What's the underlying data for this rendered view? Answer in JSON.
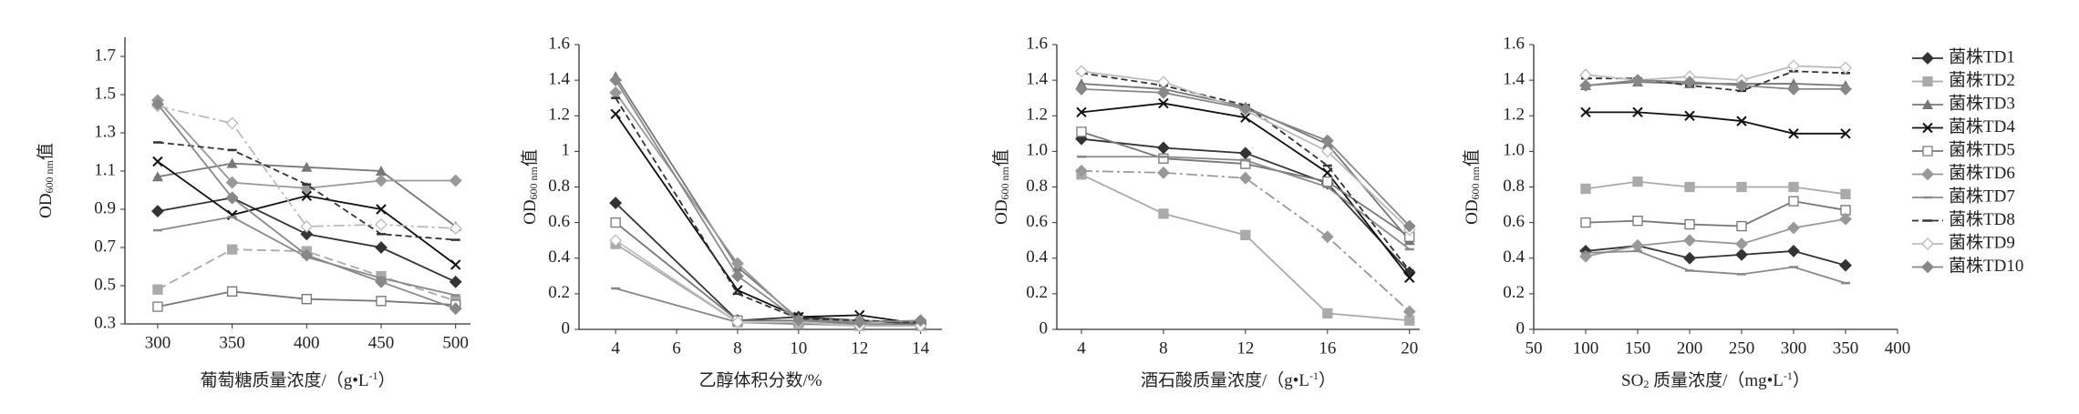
{
  "chart_data": [
    {
      "type": "line",
      "x": [
        300,
        350,
        400,
        450,
        500
      ],
      "xlim": [
        278,
        510
      ],
      "xticks": [
        300,
        350,
        400,
        450,
        500
      ],
      "ylim": [
        0.3,
        1.8
      ],
      "yticks": [
        0.3,
        0.5,
        0.7,
        0.9,
        1.1,
        1.3,
        1.5,
        1.7
      ],
      "ylabel": [
        {
          "text": "OD"
        },
        {
          "text": "600 nm",
          "shift": "sub"
        },
        {
          "text": "值"
        }
      ],
      "xlabel": [
        {
          "text": "葡萄糖质量浓度/（g•L"
        },
        {
          "text": "-1",
          "shift": "sup"
        },
        {
          "text": "）"
        }
      ],
      "series": [
        {
          "color": "#333",
          "marker": "diamond",
          "values": [
            0.89,
            0.96,
            0.77,
            0.7,
            0.52
          ]
        },
        {
          "color": "#aaa",
          "marker": "square",
          "dash": "10,5",
          "values": [
            0.48,
            0.69,
            0.68,
            0.55,
            0.42
          ]
        },
        {
          "color": "#777",
          "marker": "triangle",
          "values": [
            1.07,
            1.14,
            1.12,
            1.1,
            0.81
          ]
        },
        {
          "color": "#111",
          "marker": "cross",
          "values": [
            1.15,
            0.87,
            0.97,
            0.9,
            0.61
          ]
        },
        {
          "color": "#777",
          "marker": "open-square",
          "values": [
            0.39,
            0.47,
            0.43,
            0.42,
            0.4
          ]
        },
        {
          "color": "#999",
          "marker": "diamond",
          "values": [
            1.47,
            1.04,
            1.01,
            1.05,
            1.05
          ]
        },
        {
          "color": "#888",
          "marker": "dash",
          "values": [
            0.79,
            0.86,
            0.65,
            0.54,
            0.45
          ]
        },
        {
          "color": "#333",
          "marker": "dash",
          "dash": "7,4",
          "values": [
            1.25,
            1.21,
            1.03,
            0.77,
            0.74
          ]
        },
        {
          "color": "#bbb",
          "marker": "open-diamond",
          "dash": "12,4,3,4",
          "values": [
            1.44,
            1.35,
            0.81,
            0.82,
            0.8
          ]
        },
        {
          "color": "#888",
          "marker": "diamond",
          "values": [
            1.45,
            0.96,
            0.66,
            0.52,
            0.38
          ]
        }
      ]
    },
    {
      "type": "line",
      "x": [
        4,
        8,
        10,
        12,
        14
      ],
      "xlim": [
        2.8,
        14.7
      ],
      "xticks": [
        4,
        6,
        8,
        10,
        12,
        14
      ],
      "ylim": [
        0,
        1.6
      ],
      "yticks": [
        0,
        0.2,
        0.4,
        0.6,
        0.8,
        1,
        1.2,
        1.4,
        1.6
      ],
      "ylabel": [
        {
          "text": "OD"
        },
        {
          "text": "600 nm",
          "shift": "sub"
        },
        {
          "text": "值"
        }
      ],
      "xlabel": [
        {
          "text": "乙醇体积分数/%"
        }
      ],
      "series": [
        {
          "color": "#333",
          "marker": "diamond",
          "values": [
            0.71,
            0.05,
            0.07,
            0.05,
            0.03
          ]
        },
        {
          "color": "#aaa",
          "marker": "square",
          "values": [
            0.48,
            0.04,
            0.03,
            0.02,
            0.02
          ]
        },
        {
          "color": "#777",
          "marker": "triangle",
          "values": [
            1.42,
            0.35,
            0.06,
            0.05,
            0.04
          ]
        },
        {
          "color": "#111",
          "marker": "cross",
          "values": [
            1.21,
            0.22,
            0.07,
            0.08,
            0.03
          ]
        },
        {
          "color": "#777",
          "marker": "open-square",
          "values": [
            0.6,
            0.05,
            0.05,
            0.03,
            0.03
          ]
        },
        {
          "color": "#999",
          "marker": "diamond",
          "values": [
            1.33,
            0.37,
            0.05,
            0.05,
            0.04
          ]
        },
        {
          "color": "#888",
          "marker": "dash",
          "values": [
            0.23,
            0.04,
            0.03,
            0.03,
            0.02
          ]
        },
        {
          "color": "#333",
          "marker": "dash",
          "dash": "7,4",
          "values": [
            1.3,
            0.2,
            0.06,
            0.05,
            0.04
          ]
        },
        {
          "color": "#bbb",
          "marker": "open-diamond",
          "values": [
            0.5,
            0.04,
            0.04,
            0.02,
            0.02
          ]
        },
        {
          "color": "#888",
          "marker": "diamond",
          "values": [
            1.4,
            0.3,
            0.05,
            0.04,
            0.05
          ]
        }
      ]
    },
    {
      "type": "line",
      "x": [
        4,
        8,
        12,
        16,
        20
      ],
      "xlim": [
        2.8,
        20.5
      ],
      "xticks": [
        4,
        8,
        12,
        16,
        20
      ],
      "ylim": [
        0,
        1.6
      ],
      "yticks": [
        0,
        0.2,
        0.4,
        0.6,
        0.8,
        {
          "value": 1,
          "label": "1.0"
        },
        1.2,
        1.4,
        1.6
      ],
      "ylabel": [
        {
          "text": "OD"
        },
        {
          "text": "600 nm",
          "shift": "sub"
        },
        {
          "text": "值"
        }
      ],
      "xlabel": [
        {
          "text": "酒石酸质量浓度/（g•L"
        },
        {
          "text": "-1",
          "shift": "sup"
        },
        {
          "text": "）"
        }
      ],
      "series": [
        {
          "color": "#333",
          "marker": "diamond",
          "values": [
            1.07,
            1.02,
            0.99,
            0.82,
            0.32
          ]
        },
        {
          "color": "#aaa",
          "marker": "square",
          "values": [
            0.87,
            0.65,
            0.53,
            0.09,
            0.05
          ]
        },
        {
          "color": "#777",
          "marker": "triangle",
          "values": [
            1.38,
            1.35,
            1.25,
            1.04,
            0.5
          ]
        },
        {
          "color": "#111",
          "marker": "cross",
          "values": [
            1.22,
            1.27,
            1.19,
            0.88,
            0.29
          ]
        },
        {
          "color": "#777",
          "marker": "open-square",
          "values": [
            1.11,
            0.96,
            0.93,
            0.83,
            0.52
          ]
        },
        {
          "color": "#999",
          "marker": "diamond",
          "dash": "12,4,3,4",
          "values": [
            0.89,
            0.88,
            0.85,
            0.52,
            0.1
          ]
        },
        {
          "color": "#888",
          "marker": "dash",
          "values": [
            0.97,
            0.97,
            0.95,
            0.8,
            0.45
          ]
        },
        {
          "color": "#333",
          "marker": "dash",
          "dash": "7,4",
          "values": [
            1.44,
            1.37,
            1.26,
            0.92,
            0.33
          ]
        },
        {
          "color": "#bbb",
          "marker": "open-diamond",
          "values": [
            1.45,
            1.39,
            1.23,
            1.0,
            0.56
          ]
        },
        {
          "color": "#888",
          "marker": "diamond",
          "values": [
            1.35,
            1.33,
            1.24,
            1.06,
            0.58
          ]
        }
      ]
    },
    {
      "type": "line",
      "x": [
        100,
        150,
        200,
        250,
        300,
        350
      ],
      "xlim": [
        50,
        400
      ],
      "xticks": [
        50,
        100,
        150,
        200,
        250,
        300,
        350,
        400
      ],
      "ylim": [
        0,
        1.6
      ],
      "yticks": [
        0,
        0.2,
        0.4,
        0.6,
        0.8,
        {
          "value": 1,
          "label": "1.0"
        },
        1.2,
        1.4,
        1.6
      ],
      "ylabel": [
        {
          "text": "OD"
        },
        {
          "text": "600 nm",
          "shift": "sub"
        },
        {
          "text": "值"
        }
      ],
      "xlabel": [
        {
          "text": "SO"
        },
        {
          "text": "2",
          "shift": "sub"
        },
        {
          "text": " 质量浓度/（mg•L"
        },
        {
          "text": "-1",
          "shift": "sup"
        },
        {
          "text": "）"
        }
      ],
      "legend": "right",
      "series": [
        {
          "name": "菌株TD1",
          "color": "#333",
          "marker": "diamond",
          "values": [
            0.44,
            0.47,
            0.4,
            0.42,
            0.44,
            0.36
          ]
        },
        {
          "name": "菌株TD2",
          "color": "#aaa",
          "marker": "square",
          "values": [
            0.79,
            0.83,
            0.8,
            0.8,
            0.8,
            0.76
          ]
        },
        {
          "name": "菌株TD3",
          "color": "#777",
          "marker": "triangle",
          "values": [
            1.37,
            1.39,
            1.38,
            1.38,
            1.38,
            1.37
          ]
        },
        {
          "name": "菌株TD4",
          "color": "#111",
          "marker": "cross",
          "values": [
            1.22,
            1.22,
            1.2,
            1.17,
            1.1,
            1.1
          ]
        },
        {
          "name": "菌株TD5",
          "color": "#777",
          "marker": "open-square",
          "values": [
            0.6,
            0.61,
            0.59,
            0.58,
            0.72,
            0.67
          ]
        },
        {
          "name": "菌株TD6",
          "color": "#999",
          "marker": "diamond",
          "values": [
            0.41,
            0.47,
            0.5,
            0.48,
            0.57,
            0.62
          ]
        },
        {
          "name": "菌株TD7",
          "color": "#888",
          "marker": "dash",
          "values": [
            0.43,
            0.44,
            0.33,
            0.31,
            0.35,
            0.26
          ]
        },
        {
          "name": "菌株TD8",
          "color": "#333",
          "marker": "dash",
          "dash": "7,4",
          "values": [
            1.41,
            1.41,
            1.37,
            1.34,
            1.45,
            1.44
          ]
        },
        {
          "name": "菌株TD9",
          "color": "#bbb",
          "marker": "open-diamond",
          "values": [
            1.43,
            1.4,
            1.42,
            1.4,
            1.48,
            1.47
          ]
        },
        {
          "name": "菌株TD10",
          "color": "#888",
          "marker": "diamond",
          "values": [
            1.37,
            1.4,
            1.39,
            1.37,
            1.35,
            1.35
          ]
        }
      ]
    }
  ]
}
